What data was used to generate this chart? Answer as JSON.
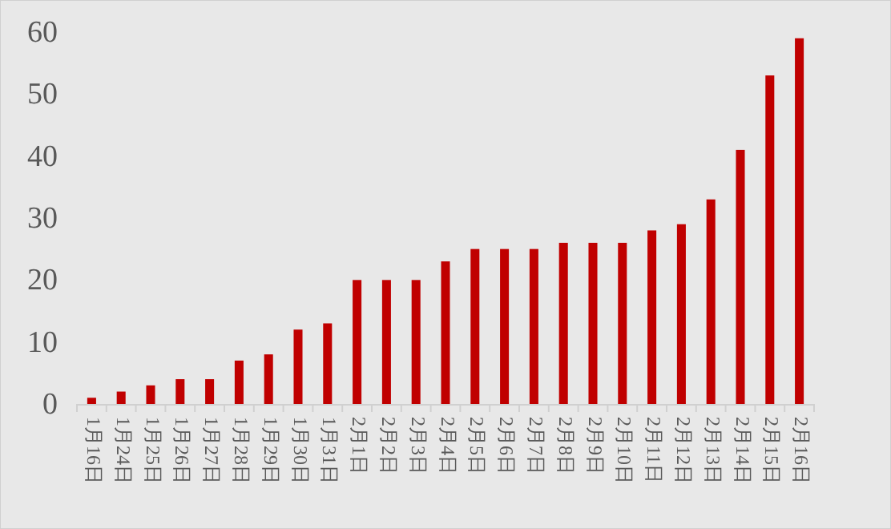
{
  "chart_data": {
    "type": "bar",
    "categories": [
      "1月16日",
      "1月24日",
      "1月25日",
      "1月26日",
      "1月27日",
      "1月28日",
      "1月29日",
      "1月30日",
      "1月31日",
      "2月1日",
      "2月2日",
      "2月3日",
      "2月4日",
      "2月5日",
      "2月6日",
      "2月7日",
      "2月8日",
      "2月9日",
      "2月10日",
      "2月11日",
      "2月12日",
      "2月13日",
      "2月14日",
      "2月15日",
      "2月16日"
    ],
    "values": [
      1,
      2,
      3,
      4,
      4,
      7,
      8,
      12,
      13,
      20,
      20,
      20,
      23,
      25,
      25,
      25,
      26,
      26,
      26,
      28,
      29,
      33,
      41,
      53,
      59
    ],
    "color": "#c00000",
    "ylim": [
      0,
      60
    ],
    "yticks": [
      0,
      10,
      20,
      30,
      40,
      50,
      60
    ],
    "grid": false
  }
}
